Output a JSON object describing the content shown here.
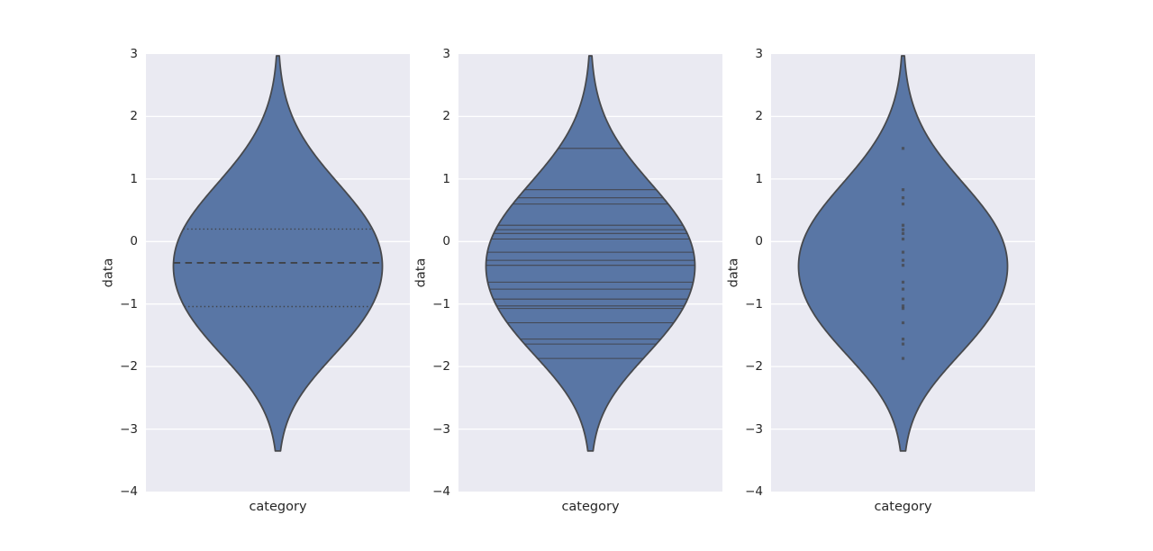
{
  "chart_data": {
    "type": "violin",
    "title": "",
    "xlabel": "category",
    "ylabel": "data",
    "categories": [
      "category"
    ],
    "ylim": [
      -4,
      3
    ],
    "yticks": [
      3,
      2,
      1,
      0,
      -1,
      -2,
      -3,
      -4
    ],
    "grid": "on",
    "legend": "none",
    "values": [
      1.49,
      0.83,
      0.7,
      0.6,
      0.26,
      0.19,
      0.13,
      0.04,
      -0.17,
      -0.3,
      -0.38,
      -0.65,
      -0.76,
      -0.92,
      -1.03,
      -1.07,
      -1.3,
      -1.56,
      -1.64,
      -1.87
    ],
    "quartiles": {
      "q1": -1.04,
      "median": -0.34,
      "q3": 0.2
    },
    "kde": {
      "bandwidth": 0.74,
      "cut": 2,
      "support": [
        -3.35,
        2.97
      ]
    },
    "subplots": [
      {
        "inner": "quartile"
      },
      {
        "inner": "stick"
      },
      {
        "inner": "point"
      }
    ],
    "colors": {
      "violin_fill": "#5976a5",
      "violin_edge": "#47494d",
      "inner_line": "#404348",
      "point": "#46494e",
      "axes_bg": "#eaeaf2",
      "grid_line": "#ffffff",
      "text": "#262626",
      "figure_bg": "#ffffff"
    }
  }
}
